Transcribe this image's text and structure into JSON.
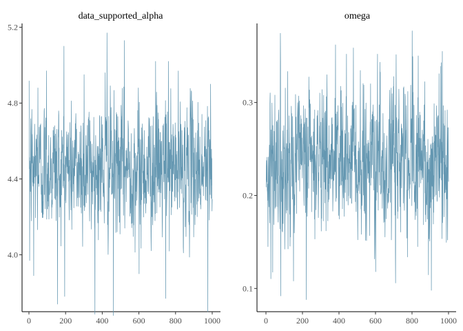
{
  "chart_data": [
    {
      "type": "line",
      "title": "data_supported_alpha",
      "xlabel": "",
      "ylabel": "",
      "xlim": [
        0,
        1000
      ],
      "ylim": [
        3.7,
        5.22
      ],
      "x_ticks": [
        0,
        200,
        400,
        600,
        800,
        1000
      ],
      "y_ticks": [
        4.0,
        4.4,
        4.8,
        5.2
      ],
      "x_tick_labels": [
        "0",
        "200",
        "400",
        "600",
        "800",
        "1000"
      ],
      "y_tick_labels": [
        "4.0",
        "4.4",
        "4.8",
        "5.2"
      ],
      "grid": false,
      "series": [
        {
          "color": "#6497b1",
          "n_draws": 1000,
          "mean": 4.46,
          "sd": 0.17,
          "min": 3.68,
          "max": 5.17,
          "notable_points": [
            {
              "x": 3,
              "y": 3.97
            },
            {
              "x": 25,
              "y": 3.89
            },
            {
              "x": 48,
              "y": 4.88
            },
            {
              "x": 95,
              "y": 4.97
            },
            {
              "x": 155,
              "y": 3.74
            },
            {
              "x": 190,
              "y": 5.1
            },
            {
              "x": 300,
              "y": 4.95
            },
            {
              "x": 415,
              "y": 4.96
            },
            {
              "x": 425,
              "y": 5.17
            },
            {
              "x": 460,
              "y": 3.68
            },
            {
              "x": 520,
              "y": 5.13
            },
            {
              "x": 600,
              "y": 3.9
            },
            {
              "x": 690,
              "y": 5.02
            },
            {
              "x": 745,
              "y": 3.77
            },
            {
              "x": 760,
              "y": 5.02
            },
            {
              "x": 975,
              "y": 3.7
            },
            {
              "x": 990,
              "y": 4.9
            }
          ]
        }
      ]
    },
    {
      "type": "line",
      "title": "omega",
      "xlabel": "",
      "ylabel": "",
      "xlim": [
        0,
        1000
      ],
      "ylim": [
        0.075,
        0.385
      ],
      "x_ticks": [
        0,
        200,
        400,
        600,
        800,
        1000
      ],
      "y_ticks": [
        0.1,
        0.2,
        0.3
      ],
      "x_tick_labels": [
        "0",
        "200",
        "400",
        "600",
        "800",
        "1000"
      ],
      "y_tick_labels": [
        "0.1",
        "0.2",
        "0.3"
      ],
      "grid": false,
      "series": [
        {
          "color": "#6497b1",
          "n_draws": 1000,
          "mean": 0.235,
          "sd": 0.04,
          "min": 0.088,
          "max": 0.377,
          "notable_points": [
            {
              "x": 10,
              "y": 0.145
            },
            {
              "x": 80,
              "y": 0.092
            },
            {
              "x": 150,
              "y": 0.108
            },
            {
              "x": 220,
              "y": 0.088
            },
            {
              "x": 380,
              "y": 0.362
            },
            {
              "x": 440,
              "y": 0.352
            },
            {
              "x": 600,
              "y": 0.118
            },
            {
              "x": 610,
              "y": 0.352
            },
            {
              "x": 800,
              "y": 0.377
            },
            {
              "x": 830,
              "y": 0.145
            },
            {
              "x": 905,
              "y": 0.098
            },
            {
              "x": 965,
              "y": 0.355
            }
          ]
        }
      ]
    }
  ]
}
